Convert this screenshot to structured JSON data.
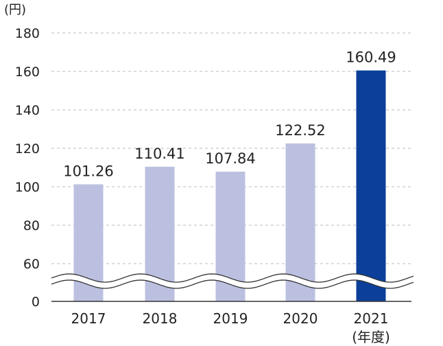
{
  "colors": {
    "bar": "#bcc0e0",
    "highlight_bar": "#0b3f9a",
    "highlight_label": "#1f4fa5",
    "grid": "#bbbbbb",
    "text": "#222222"
  },
  "chart_data": {
    "type": "bar",
    "y_unit_label": "(円)",
    "x_unit_label": "(年度)",
    "categories": [
      "2017",
      "2018",
      "2019",
      "2020",
      "2021"
    ],
    "values": [
      101.26,
      110.41,
      107.84,
      122.52,
      160.49
    ],
    "value_labels": [
      "101.26",
      "110.41",
      "107.84",
      "122.52",
      "160.49"
    ],
    "highlight_index": 4,
    "y_ticks": [
      "0",
      "60",
      "80",
      "100",
      "120",
      "140",
      "160",
      "180"
    ],
    "y_axis_break": true,
    "ylim": [
      0,
      180
    ],
    "grid": "dashed horizontal"
  }
}
